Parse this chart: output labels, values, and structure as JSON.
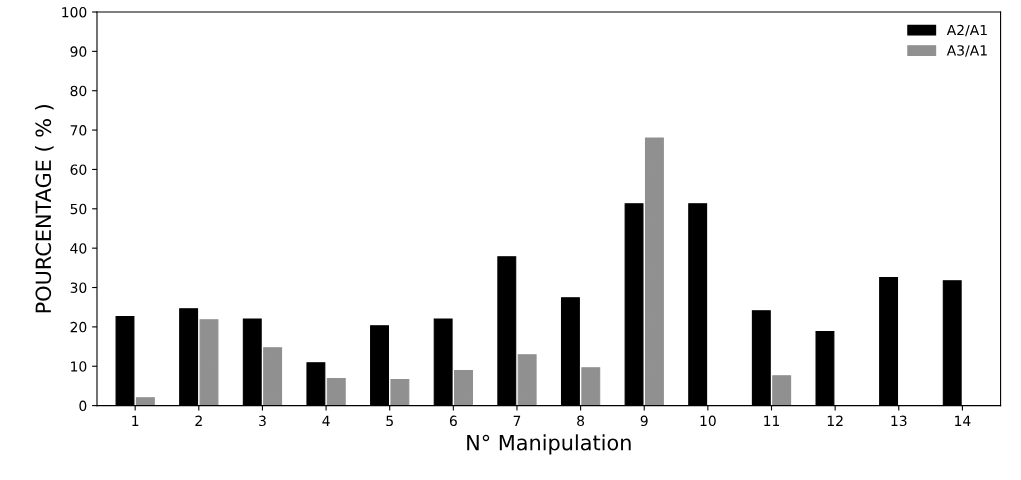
{
  "chart_data": {
    "type": "bar",
    "xlabel": "N° Manipulation",
    "ylabel": "POURCENTAGE ( % )",
    "categories": [
      "1",
      "2",
      "3",
      "4",
      "5",
      "6",
      "7",
      "8",
      "9",
      "10",
      "11",
      "12",
      "13",
      "14"
    ],
    "series": [
      {
        "name": "A2/A1",
        "color": "#000000",
        "values": [
          22.6,
          24.6,
          22,
          10.9,
          20.3,
          22,
          37.8,
          27.4,
          51.3,
          51.3,
          24.1,
          18.8,
          32.5,
          31.7
        ]
      },
      {
        "name": "A3/A1",
        "color": "#909090",
        "values": [
          2,
          21.8,
          14.7,
          6.9,
          6.6,
          8.9,
          12.9,
          9.6,
          68,
          null,
          7.6,
          null,
          null,
          null
        ]
      }
    ],
    "ylim": [
      0,
      100
    ],
    "yticks": [
      0,
      10,
      20,
      30,
      40,
      50,
      60,
      70,
      80,
      90,
      100
    ],
    "grid": false,
    "legend": "top right"
  }
}
